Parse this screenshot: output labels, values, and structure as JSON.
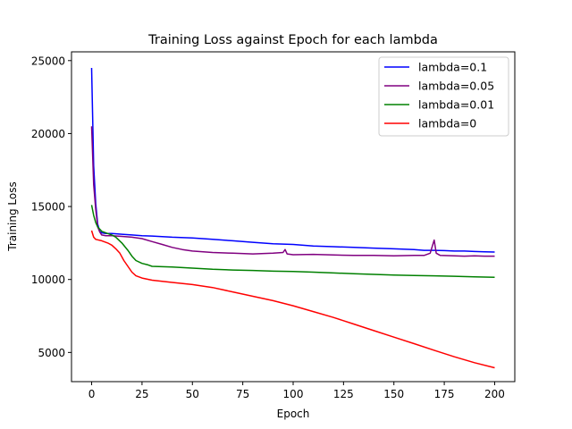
{
  "chart_data": {
    "type": "line",
    "title": "Training Loss against Epoch for each lambda",
    "xlabel": "Epoch",
    "ylabel": "Training Loss",
    "xlim": [
      -10,
      210
    ],
    "ylim": [
      3000,
      25600
    ],
    "xticks": [
      0,
      25,
      50,
      75,
      100,
      125,
      150,
      175,
      200
    ],
    "yticks": [
      5000,
      10000,
      15000,
      20000,
      25000
    ],
    "grid": false,
    "legend_position": "top-right",
    "series": [
      {
        "name": "lambda=0.1",
        "color": "#0000ff",
        "points": [
          [
            0,
            24500
          ],
          [
            1,
            17800
          ],
          [
            2,
            15200
          ],
          [
            3,
            13800
          ],
          [
            4,
            13300
          ],
          [
            5,
            13200
          ],
          [
            7,
            13150
          ],
          [
            10,
            13150
          ],
          [
            15,
            13100
          ],
          [
            20,
            13050
          ],
          [
            25,
            13000
          ],
          [
            30,
            12980
          ],
          [
            40,
            12900
          ],
          [
            50,
            12850
          ],
          [
            60,
            12750
          ],
          [
            70,
            12650
          ],
          [
            80,
            12550
          ],
          [
            90,
            12450
          ],
          [
            100,
            12400
          ],
          [
            110,
            12300
          ],
          [
            120,
            12250
          ],
          [
            130,
            12200
          ],
          [
            140,
            12150
          ],
          [
            150,
            12100
          ],
          [
            160,
            12050
          ],
          [
            165,
            12000
          ],
          [
            170,
            12000
          ],
          [
            175,
            11980
          ],
          [
            180,
            11950
          ],
          [
            185,
            11950
          ],
          [
            190,
            11920
          ],
          [
            195,
            11900
          ],
          [
            200,
            11880
          ]
        ]
      },
      {
        "name": "lambda=0.05",
        "color": "#800080",
        "points": [
          [
            0,
            20500
          ],
          [
            1,
            16500
          ],
          [
            2,
            14800
          ],
          [
            3,
            13600
          ],
          [
            4,
            13250
          ],
          [
            5,
            13050
          ],
          [
            7,
            13000
          ],
          [
            10,
            13000
          ],
          [
            15,
            12950
          ],
          [
            20,
            12900
          ],
          [
            25,
            12800
          ],
          [
            30,
            12600
          ],
          [
            35,
            12400
          ],
          [
            40,
            12200
          ],
          [
            45,
            12050
          ],
          [
            50,
            11950
          ],
          [
            60,
            11850
          ],
          [
            70,
            11800
          ],
          [
            80,
            11750
          ],
          [
            90,
            11800
          ],
          [
            95,
            11850
          ],
          [
            96,
            12050
          ],
          [
            97,
            11750
          ],
          [
            100,
            11700
          ],
          [
            110,
            11720
          ],
          [
            120,
            11680
          ],
          [
            130,
            11650
          ],
          [
            140,
            11650
          ],
          [
            150,
            11620
          ],
          [
            160,
            11650
          ],
          [
            165,
            11650
          ],
          [
            168,
            11800
          ],
          [
            170,
            12700
          ],
          [
            171,
            11800
          ],
          [
            173,
            11650
          ],
          [
            180,
            11620
          ],
          [
            185,
            11600
          ],
          [
            190,
            11620
          ],
          [
            195,
            11600
          ],
          [
            200,
            11600
          ]
        ]
      },
      {
        "name": "lambda=0.01",
        "color": "#008000",
        "points": [
          [
            0,
            15100
          ],
          [
            1,
            14400
          ],
          [
            2,
            13900
          ],
          [
            3,
            13600
          ],
          [
            5,
            13300
          ],
          [
            8,
            13150
          ],
          [
            10,
            13050
          ],
          [
            12,
            12900
          ],
          [
            15,
            12500
          ],
          [
            18,
            12000
          ],
          [
            20,
            11600
          ],
          [
            22,
            11300
          ],
          [
            25,
            11100
          ],
          [
            28,
            11000
          ],
          [
            30,
            10900
          ],
          [
            40,
            10850
          ],
          [
            50,
            10780
          ],
          [
            60,
            10700
          ],
          [
            70,
            10650
          ],
          [
            80,
            10620
          ],
          [
            90,
            10570
          ],
          [
            100,
            10550
          ],
          [
            110,
            10500
          ],
          [
            120,
            10450
          ],
          [
            130,
            10400
          ],
          [
            140,
            10350
          ],
          [
            150,
            10300
          ],
          [
            160,
            10270
          ],
          [
            170,
            10250
          ],
          [
            180,
            10220
          ],
          [
            190,
            10180
          ],
          [
            200,
            10150
          ]
        ]
      },
      {
        "name": "lambda=0",
        "color": "#ff0000",
        "points": [
          [
            0,
            13350
          ],
          [
            1,
            12900
          ],
          [
            2,
            12750
          ],
          [
            5,
            12650
          ],
          [
            8,
            12500
          ],
          [
            10,
            12350
          ],
          [
            12,
            12100
          ],
          [
            14,
            11800
          ],
          [
            16,
            11300
          ],
          [
            18,
            10900
          ],
          [
            20,
            10500
          ],
          [
            22,
            10250
          ],
          [
            25,
            10100
          ],
          [
            30,
            9950
          ],
          [
            40,
            9800
          ],
          [
            50,
            9650
          ],
          [
            60,
            9450
          ],
          [
            70,
            9150
          ],
          [
            80,
            8850
          ],
          [
            90,
            8550
          ],
          [
            100,
            8200
          ],
          [
            110,
            7800
          ],
          [
            120,
            7400
          ],
          [
            130,
            6950
          ],
          [
            140,
            6500
          ],
          [
            150,
            6050
          ],
          [
            160,
            5600
          ],
          [
            170,
            5150
          ],
          [
            180,
            4700
          ],
          [
            190,
            4300
          ],
          [
            200,
            3950
          ]
        ]
      }
    ]
  }
}
